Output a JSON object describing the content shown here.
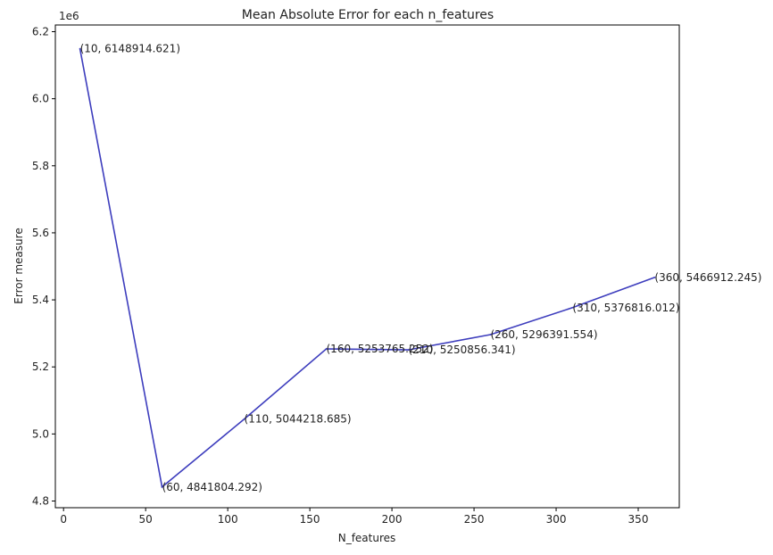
{
  "chart_data": {
    "type": "line",
    "title": "Mean Absolute Error for each n_features",
    "xlabel": "N_features",
    "ylabel": "Error measure",
    "y_offset_text": "1e6",
    "xlim": [
      -5,
      375
    ],
    "ylim": [
      4.78,
      6.22
    ],
    "x_ticks": [
      0,
      50,
      100,
      150,
      200,
      250,
      300,
      350
    ],
    "y_ticks": [
      4.8,
      5.0,
      5.2,
      5.4,
      5.6,
      5.8,
      6.0,
      6.2
    ],
    "grid": false,
    "line_color": "#3d3dbd",
    "x": [
      10,
      60,
      110,
      160,
      210,
      260,
      310,
      360
    ],
    "y": [
      6148914.621,
      4841804.292,
      5044218.685,
      5253765.252,
      5250856.341,
      5296391.554,
      5376816.012,
      5466912.245
    ],
    "annotations": [
      "(10, 6148914.621)",
      "(60, 4841804.292)",
      "(110, 5044218.685)",
      "(160, 5253765.252)",
      "(210, 5250856.341)",
      "(260, 5296391.554)",
      "(310, 5376816.012)",
      "(360, 5466912.245)"
    ]
  }
}
